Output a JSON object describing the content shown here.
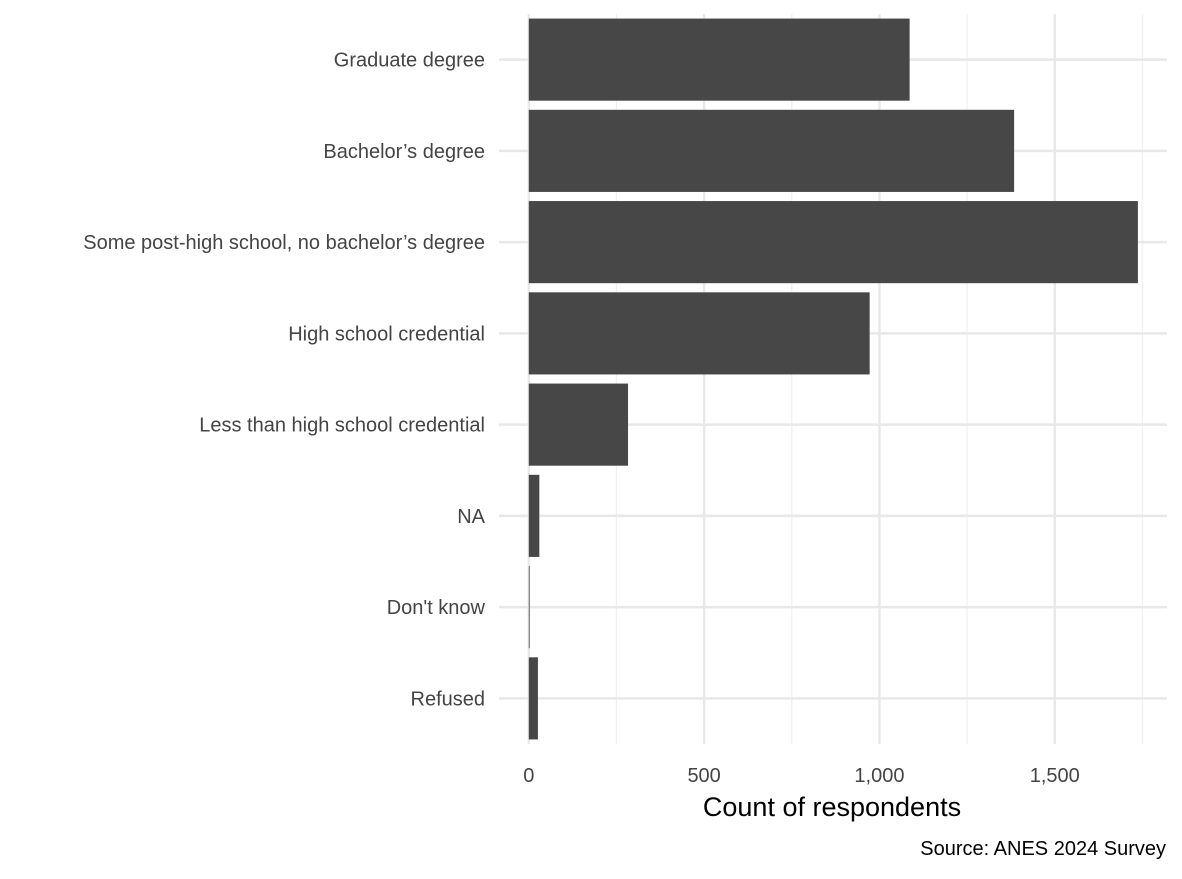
{
  "chart_data": {
    "type": "bar",
    "orientation": "horizontal",
    "categories": [
      "Graduate degree",
      "Bachelor’s degree",
      "Some post-high school, no bachelor’s degree",
      "High school credential",
      "Less than high school credential",
      "NA",
      "Don't know",
      "Refused"
    ],
    "values": [
      1086,
      1384,
      1737,
      972,
      283,
      30,
      2,
      26
    ],
    "title": "",
    "xlabel": "Count of respondents",
    "ylabel": "",
    "xlim": [
      -85,
      1820
    ],
    "x_ticks": [
      0,
      500,
      1000,
      1500
    ],
    "x_tick_labels": [
      "0",
      "500",
      "1,000",
      "1,500"
    ],
    "grid": true,
    "legend": "none",
    "bar_color": "#474747",
    "caption": "Source: ANES 2024 Survey"
  }
}
